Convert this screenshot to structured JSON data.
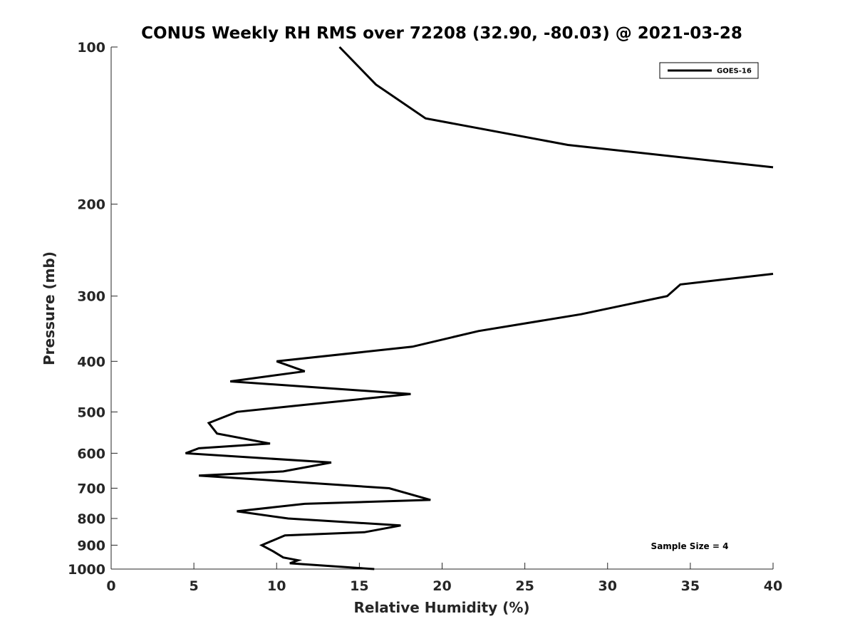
{
  "chart_data": {
    "type": "line",
    "title": "CONUS Weekly RH RMS over 72208 (32.90, -80.03) @ 2021-03-28",
    "xlabel": "Relative Humidity (%)",
    "ylabel": "Pressure (mb)",
    "xlim": [
      0,
      40
    ],
    "ylim": [
      1000,
      100
    ],
    "y_scale": "log",
    "y_reversed": true,
    "x_ticks": [
      "0",
      "5",
      "10",
      "15",
      "20",
      "25",
      "30",
      "35",
      "40"
    ],
    "y_ticks": [
      "100",
      "200",
      "300",
      "400",
      "500",
      "600",
      "700",
      "800",
      "900",
      "1000"
    ],
    "legend_position": "top-right",
    "grid": false,
    "annotation": "Sample Size = 4",
    "series": [
      {
        "name": "GOES-16",
        "color": "#000000",
        "segments": [
          [
            {
              "x": 13.8,
              "p": 100
            },
            {
              "x": 16.0,
              "p": 118
            },
            {
              "x": 19.0,
              "p": 137
            },
            {
              "x": 27.6,
              "p": 154
            },
            {
              "x": 40.0,
              "p": 170
            }
          ],
          [
            {
              "x": 40.0,
              "p": 272
            },
            {
              "x": 34.4,
              "p": 285
            },
            {
              "x": 33.6,
              "p": 300
            },
            {
              "x": 28.4,
              "p": 325
            },
            {
              "x": 22.2,
              "p": 350
            },
            {
              "x": 18.2,
              "p": 375
            },
            {
              "x": 10.0,
              "p": 400
            },
            {
              "x": 11.7,
              "p": 418
            },
            {
              "x": 7.2,
              "p": 437
            },
            {
              "x": 18.1,
              "p": 462
            },
            {
              "x": 11.6,
              "p": 485
            },
            {
              "x": 7.6,
              "p": 500
            },
            {
              "x": 5.9,
              "p": 525
            },
            {
              "x": 6.4,
              "p": 550
            },
            {
              "x": 9.6,
              "p": 575
            },
            {
              "x": 5.3,
              "p": 587
            },
            {
              "x": 4.5,
              "p": 600
            },
            {
              "x": 13.3,
              "p": 625
            },
            {
              "x": 10.4,
              "p": 650
            },
            {
              "x": 5.3,
              "p": 662
            },
            {
              "x": 16.8,
              "p": 700
            },
            {
              "x": 19.3,
              "p": 737
            },
            {
              "x": 11.7,
              "p": 750
            },
            {
              "x": 7.6,
              "p": 775
            },
            {
              "x": 10.7,
              "p": 800
            },
            {
              "x": 17.5,
              "p": 825
            },
            {
              "x": 15.3,
              "p": 850
            },
            {
              "x": 10.5,
              "p": 862
            },
            {
              "x": 9.1,
              "p": 900
            },
            {
              "x": 9.8,
              "p": 925
            },
            {
              "x": 10.4,
              "p": 950
            },
            {
              "x": 11.3,
              "p": 962
            },
            {
              "x": 10.8,
              "p": 975
            },
            {
              "x": 15.9,
              "p": 1000
            }
          ]
        ]
      }
    ]
  }
}
